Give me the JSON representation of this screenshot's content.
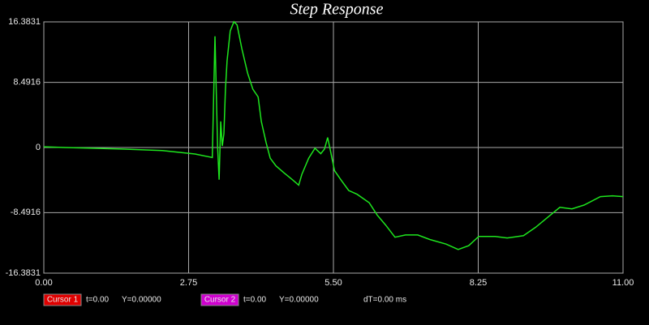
{
  "chart_data": {
    "type": "line",
    "title": "Step Response",
    "color": "#1ee61e",
    "grid": true,
    "xlim": [
      0,
      11
    ],
    "ylim": [
      -16.3831,
      16.3831
    ],
    "xticks": [
      {
        "value": 0,
        "label": "0.00"
      },
      {
        "value": 2.75,
        "label": "2.75"
      },
      {
        "value": 5.5,
        "label": "5.50"
      },
      {
        "value": 8.25,
        "label": "8.25"
      },
      {
        "value": 11,
        "label": "11.00"
      }
    ],
    "yticks": [
      16.3831,
      8.4916,
      0,
      -8.4916,
      -16.3831
    ],
    "x": [
      0,
      0.4,
      0.71,
      1.48,
      2.25,
      2.87,
      3.2,
      3.25,
      3.3,
      3.33,
      3.36,
      3.39,
      3.42,
      3.45,
      3.48,
      3.54,
      3.61,
      3.67,
      3.76,
      3.87,
      3.97,
      4.07,
      4.13,
      4.22,
      4.3,
      4.41,
      4.56,
      4.72,
      4.84,
      4.9,
      5.03,
      5.15,
      5.26,
      5.33,
      5.39,
      5.44,
      5.52,
      5.64,
      5.79,
      5.95,
      6.18,
      6.33,
      6.49,
      6.67,
      6.87,
      7.1,
      7.33,
      7.64,
      7.87,
      8.07,
      8.26,
      8.57,
      8.8,
      9.11,
      9.34,
      9.57,
      9.8,
      10.03,
      10.26,
      10.57,
      10.8,
      11
    ],
    "values": [
      0.1,
      0,
      -0.05,
      -0.2,
      -0.4,
      -0.85,
      -1.3,
      14.5,
      0.2,
      -4.2,
      3.4,
      0.2,
      1.8,
      7.6,
      11.3,
      15.2,
      16.4,
      16.0,
      12.9,
      9.7,
      7.6,
      6.6,
      3.4,
      0.7,
      -1.4,
      -2.4,
      -3.3,
      -4.2,
      -4.9,
      -3.5,
      -1.4,
      -0.1,
      -0.8,
      -0.2,
      1.3,
      -0.3,
      -3.0,
      -4.2,
      -5.6,
      -6.1,
      -7.2,
      -8.8,
      -10.1,
      -11.7,
      -11.4,
      -11.4,
      -12.0,
      -12.6,
      -13.3,
      -12.8,
      -11.6,
      -11.6,
      -11.8,
      -11.5,
      -10.4,
      -9.1,
      -7.8,
      -8.0,
      -7.5,
      -6.4,
      -6.3,
      -6.4
    ],
    "cursors": [
      {
        "label": "Cursor 1",
        "color": "#e00000",
        "t": "t=0.00",
        "y": "Y=0.00000"
      },
      {
        "label": "Cursor 2",
        "color": "#d000d0",
        "t": "t=0.00",
        "y": "Y=0.00000"
      }
    ],
    "dt": "dT=0.00 ms"
  }
}
